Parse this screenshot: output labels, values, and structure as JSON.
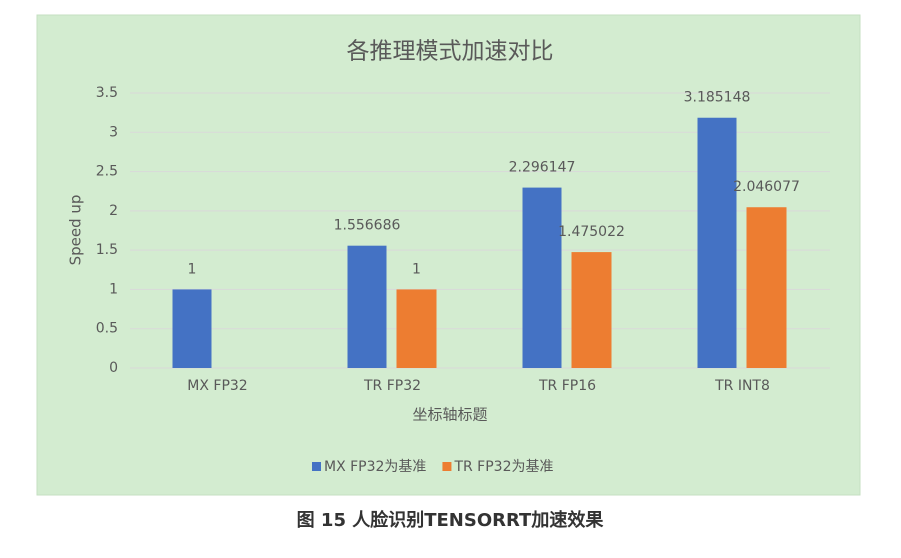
{
  "chart_data": {
    "type": "bar",
    "title": "各推理模式加速对比",
    "x_label": "坐标轴标题",
    "y_label": "Speed up",
    "categories": [
      "MX FP32",
      "TR FP32",
      "TR FP16",
      "TR INT8"
    ],
    "series": [
      {
        "name": "MX FP32为基准",
        "color": "#4472c4",
        "values": [
          1,
          1.556686,
          2.296147,
          3.185148
        ]
      },
      {
        "name": "TR FP32为基准",
        "color": "#ed7d31",
        "values": [
          null,
          1,
          1.475022,
          2.046077
        ]
      }
    ],
    "ylim": [
      0,
      3.5
    ],
    "yticks": [
      0,
      0.5,
      1,
      1.5,
      2,
      2.5,
      3,
      3.5
    ],
    "grid": true,
    "legend": "bottom"
  },
  "caption": "图 15 人脸识别TENSORRT加速效果"
}
